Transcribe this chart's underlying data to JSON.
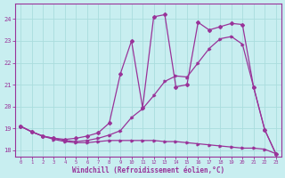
{
  "bg_color": "#c8eef0",
  "grid_color": "#aadddd",
  "line_color": "#993399",
  "xlabel": "Windchill (Refroidissement éolien,°C)",
  "xlim": [
    -0.5,
    23.5
  ],
  "ylim": [
    17.7,
    24.7
  ],
  "yticks": [
    18,
    19,
    20,
    21,
    22,
    23,
    24
  ],
  "xticks": [
    0,
    1,
    2,
    3,
    4,
    5,
    6,
    7,
    8,
    9,
    10,
    11,
    12,
    13,
    14,
    15,
    16,
    17,
    18,
    19,
    20,
    21,
    22,
    23
  ],
  "curve1_x": [
    0,
    1,
    2,
    3,
    4,
    5,
    6,
    7,
    8,
    9,
    10,
    11,
    12,
    13,
    14,
    15,
    16,
    17,
    18,
    19,
    20,
    21,
    22,
    23
  ],
  "curve1_y": [
    19.1,
    18.85,
    18.65,
    18.5,
    18.4,
    18.35,
    18.35,
    18.4,
    18.45,
    18.45,
    18.45,
    18.45,
    18.45,
    18.4,
    18.4,
    18.35,
    18.3,
    18.25,
    18.2,
    18.15,
    18.1,
    18.1,
    18.05,
    17.85
  ],
  "curve2_x": [
    0,
    1,
    2,
    3,
    4,
    5,
    6,
    7,
    8,
    9,
    10,
    11,
    12,
    13,
    14,
    15,
    16,
    17,
    18,
    19,
    20,
    21,
    22,
    23
  ],
  "curve2_y": [
    19.1,
    18.85,
    18.65,
    18.55,
    18.45,
    18.4,
    18.45,
    18.55,
    18.7,
    18.9,
    19.5,
    19.9,
    20.5,
    21.15,
    21.4,
    21.35,
    22.0,
    22.65,
    23.1,
    23.2,
    22.85,
    20.9,
    18.95,
    17.85
  ],
  "curve3_x": [
    0,
    1,
    2,
    3,
    4,
    5,
    6,
    7,
    8,
    9,
    10,
    11,
    12,
    13,
    14,
    15,
    16,
    17,
    18,
    19,
    20,
    21,
    22,
    23
  ],
  "curve3_y": [
    19.1,
    18.85,
    18.65,
    18.55,
    18.5,
    18.55,
    18.65,
    18.8,
    19.25,
    21.5,
    23.0,
    19.95,
    24.1,
    24.2,
    20.9,
    21.0,
    23.85,
    23.5,
    23.65,
    23.8,
    23.75,
    20.9,
    18.95,
    17.85
  ],
  "marker1": ">",
  "marker2": ">",
  "marker3": "D"
}
